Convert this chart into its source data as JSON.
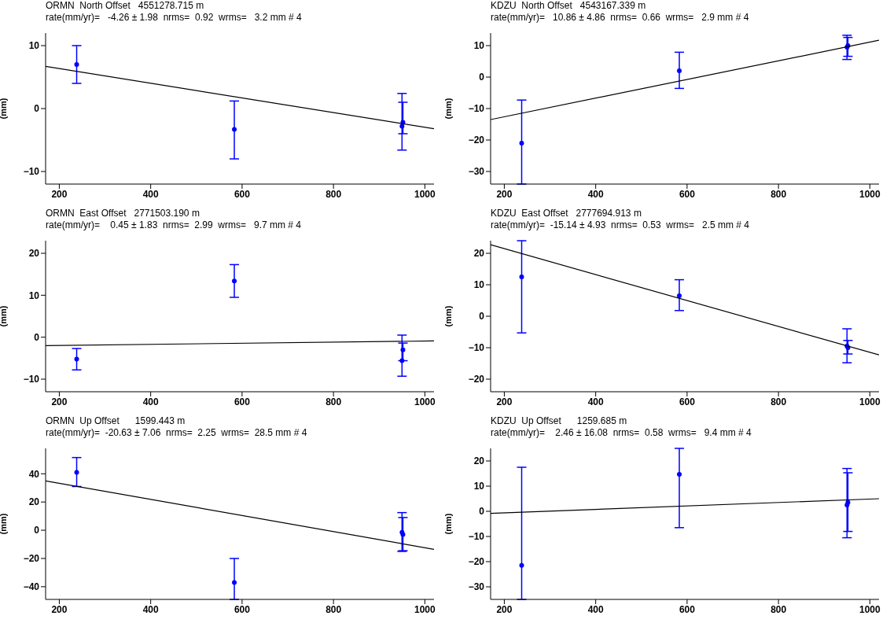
{
  "chart_data": [
    {
      "type": "scatter",
      "title": "ORMN  North Offset   4551278.715 m",
      "subtitle": "rate(mm/yr)=   -4.26 ± 1.98  nrms=  0.92  wrms=   3.2 mm # 4",
      "ylabel": "(mm)",
      "xlim": [
        170,
        1020
      ],
      "xticks": [
        200,
        400,
        600,
        800,
        1000
      ],
      "ylim": [
        -12,
        12
      ],
      "yticks": [
        -10,
        0,
        10
      ],
      "series": [
        {
          "color": "#0000ff",
          "marker": "circle",
          "x": [
            238,
            583,
            950,
            952
          ],
          "values": [
            7,
            -3.3,
            -2.8,
            -2.2
          ],
          "errors": [
            [
              4,
              10
            ],
            [
              -8,
              1.2
            ],
            [
              -6.6,
              2.4
            ],
            [
              -4,
              1
            ]
          ]
        },
        {
          "type": "line",
          "color": "#000000",
          "marker": "none",
          "x": [
            170,
            1020
          ],
          "values": [
            6.7,
            -3.2
          ]
        }
      ]
    },
    {
      "type": "scatter",
      "title": "KDZU  North Offset   4543167.339 m",
      "subtitle": "rate(mm/yr)=   10.86 ± 4.86  nrms=  0.66  wrms=   2.9 mm # 4",
      "ylabel": "(mm)",
      "xlim": [
        170,
        1020
      ],
      "xticks": [
        200,
        400,
        600,
        800,
        1000
      ],
      "ylim": [
        -34,
        14
      ],
      "yticks": [
        -30,
        -20,
        -10,
        0,
        10
      ],
      "series": [
        {
          "color": "#0000ff",
          "marker": "circle",
          "x": [
            238,
            583,
            950,
            952
          ],
          "values": [
            -21,
            2,
            9.5,
            10
          ],
          "errors": [
            [
              -34,
              -7.3
            ],
            [
              -3.6,
              7.9
            ],
            [
              5.6,
              13.3
            ],
            [
              6.6,
              12.6
            ]
          ]
        },
        {
          "type": "line",
          "color": "#000000",
          "marker": "none",
          "x": [
            170,
            1020
          ],
          "values": [
            -13.5,
            11.7
          ]
        }
      ]
    },
    {
      "type": "scatter",
      "title": "ORMN  East Offset   2771503.190 m",
      "subtitle": "rate(mm/yr)=    0.45 ± 1.83  nrms=  2.99  wrms=   9.7 mm # 4",
      "ylabel": "(mm)",
      "xlim": [
        170,
        1020
      ],
      "xticks": [
        200,
        400,
        600,
        800,
        1000
      ],
      "ylim": [
        -13,
        23
      ],
      "yticks": [
        -10,
        0,
        10,
        20
      ],
      "series": [
        {
          "color": "#0000ff",
          "marker": "circle",
          "x": [
            238,
            583,
            950,
            952
          ],
          "values": [
            -5.2,
            13.4,
            -5.6,
            -3
          ],
          "errors": [
            [
              -7.8,
              -2.7
            ],
            [
              9.5,
              17.3
            ],
            [
              -9.3,
              0.5
            ],
            [
              -5.6,
              -1.4
            ]
          ]
        },
        {
          "type": "line",
          "color": "#000000",
          "marker": "none",
          "x": [
            170,
            1020
          ],
          "values": [
            -2,
            -0.9
          ]
        }
      ]
    },
    {
      "type": "scatter",
      "title": "KDZU  East Offset   2777694.913 m",
      "subtitle": "rate(mm/yr)=  -15.14 ± 4.93  nrms=  0.53  wrms=   2.5 mm # 4",
      "ylabel": "(mm)",
      "xlim": [
        170,
        1020
      ],
      "xticks": [
        200,
        400,
        600,
        800,
        1000
      ],
      "ylim": [
        -24,
        24
      ],
      "yticks": [
        -20,
        -10,
        0,
        10,
        20
      ],
      "series": [
        {
          "color": "#0000ff",
          "marker": "circle",
          "x": [
            238,
            583,
            950,
            952
          ],
          "values": [
            12.5,
            6.5,
            -9.5,
            -10
          ],
          "errors": [
            [
              -5.3,
              24
            ],
            [
              1.8,
              11.6
            ],
            [
              -14.8,
              -4
            ],
            [
              -12,
              -7.7
            ]
          ]
        },
        {
          "type": "line",
          "color": "#000000",
          "marker": "none",
          "x": [
            170,
            1020
          ],
          "values": [
            22.7,
            -12.3
          ]
        }
      ]
    },
    {
      "type": "scatter",
      "title": "ORMN  Up Offset      1599.443 m",
      "subtitle": "rate(mm/yr)=  -20.63 ± 7.06  nrms=  2.25  wrms=  28.5 mm # 4",
      "ylabel": "(mm)",
      "xlim": [
        170,
        1020
      ],
      "xticks": [
        200,
        400,
        600,
        800,
        1000
      ],
      "ylim": [
        -49,
        58
      ],
      "yticks": [
        -40,
        -20,
        0,
        20,
        40
      ],
      "series": [
        {
          "color": "#0000ff",
          "marker": "circle",
          "x": [
            238,
            583,
            950,
            952
          ],
          "values": [
            41,
            -37,
            -1.5,
            -3
          ],
          "errors": [
            [
              31,
              51.5
            ],
            [
              -49,
              -20
            ],
            [
              -15,
              12.5
            ],
            [
              -14.5,
              9
            ]
          ]
        },
        {
          "type": "line",
          "color": "#000000",
          "marker": "none",
          "x": [
            170,
            1020
          ],
          "values": [
            35,
            -13.5
          ]
        }
      ]
    },
    {
      "type": "scatter",
      "title": "KDZU  Up Offset      1259.685 m",
      "subtitle": "rate(mm/yr)=    2.46 ± 16.08  nrms=  0.58  wrms=   9.4 mm # 4",
      "ylabel": "(mm)",
      "xlim": [
        170,
        1020
      ],
      "xticks": [
        200,
        400,
        600,
        800,
        1000
      ],
      "ylim": [
        -35,
        25
      ],
      "yticks": [
        -30,
        -20,
        -10,
        0,
        10,
        20
      ],
      "series": [
        {
          "color": "#0000ff",
          "marker": "circle",
          "x": [
            238,
            583,
            950,
            952
          ],
          "values": [
            -21.5,
            14.7,
            2.5,
            3.5
          ],
          "errors": [
            [
              -35,
              17.5
            ],
            [
              -6.5,
              25
            ],
            [
              -10.5,
              17
            ],
            [
              -8,
              15.3
            ]
          ]
        },
        {
          "type": "line",
          "color": "#000000",
          "marker": "none",
          "x": [
            170,
            1020
          ],
          "values": [
            -0.8,
            5
          ]
        }
      ]
    }
  ]
}
